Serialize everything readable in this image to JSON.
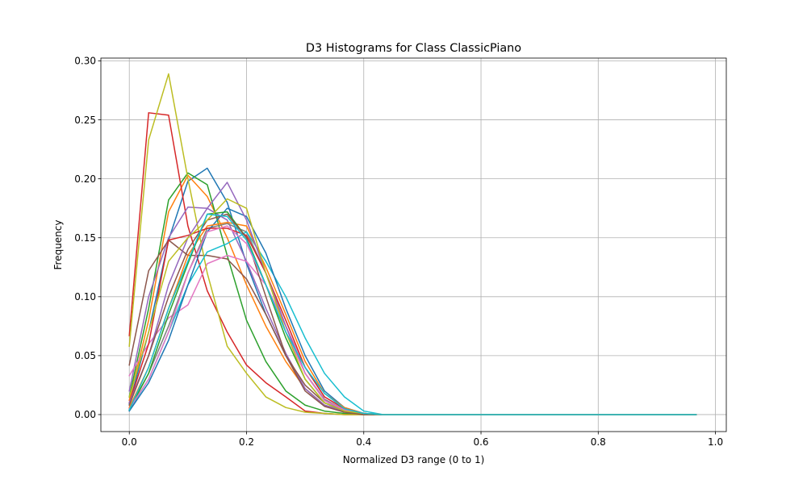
{
  "chart_data": {
    "type": "line",
    "title": "D3 Histograms for Class ClassicPiano",
    "xlabel": "Normalized D3 range (0 to 1)",
    "ylabel": "Frequency",
    "xlim": [
      -0.0485,
      1.0185
    ],
    "ylim": [
      -0.0144,
      0.3024
    ],
    "xticks": [
      0.0,
      0.2,
      0.4,
      0.6,
      0.8,
      1.0
    ],
    "xtick_labels": [
      "0.0",
      "0.2",
      "0.4",
      "0.6",
      "0.8",
      "1.0"
    ],
    "yticks": [
      0.0,
      0.05,
      0.1,
      0.15,
      0.2,
      0.25,
      0.3
    ],
    "ytick_labels": [
      "0.00",
      "0.05",
      "0.10",
      "0.15",
      "0.20",
      "0.25",
      "0.30"
    ],
    "grid": true,
    "legend": "none",
    "x": [
      0.0,
      0.033,
      0.067,
      0.1,
      0.133,
      0.167,
      0.2,
      0.233,
      0.267,
      0.3,
      0.333,
      0.367,
      0.4,
      0.433,
      0.467,
      0.5,
      0.533,
      0.567,
      0.6,
      0.633,
      0.667,
      0.7,
      0.733,
      0.767,
      0.8,
      0.833,
      0.867,
      0.9,
      0.933,
      0.967
    ],
    "series": [
      {
        "color": "#1f77b4",
        "values": [
          0.009,
          0.07,
          0.148,
          0.198,
          0.209,
          0.18,
          0.128,
          0.085,
          0.05,
          0.022,
          0.008,
          0.003,
          0.001,
          0,
          0,
          0,
          0,
          0,
          0,
          0,
          0,
          0,
          0,
          0,
          0,
          0,
          0,
          0,
          0,
          0
        ]
      },
      {
        "color": "#ff7f0e",
        "values": [
          0.012,
          0.08,
          0.172,
          0.203,
          0.185,
          0.15,
          0.11,
          0.075,
          0.045,
          0.022,
          0.008,
          0.003,
          0.001,
          0,
          0,
          0,
          0,
          0,
          0,
          0,
          0,
          0,
          0,
          0,
          0,
          0,
          0,
          0,
          0,
          0
        ]
      },
      {
        "color": "#2ca02c",
        "values": [
          0.015,
          0.09,
          0.182,
          0.205,
          0.195,
          0.135,
          0.08,
          0.045,
          0.02,
          0.008,
          0.003,
          0.001,
          0,
          0,
          0,
          0,
          0,
          0,
          0,
          0,
          0,
          0,
          0,
          0,
          0,
          0,
          0,
          0,
          0,
          0
        ]
      },
      {
        "color": "#d62728",
        "values": [
          0.067,
          0.256,
          0.254,
          0.16,
          0.105,
          0.07,
          0.042,
          0.027,
          0.015,
          0.003,
          0.001,
          0,
          0,
          0,
          0,
          0,
          0,
          0,
          0,
          0,
          0,
          0,
          0,
          0,
          0,
          0,
          0,
          0,
          0,
          0
        ]
      },
      {
        "color": "#9467bd",
        "values": [
          0.02,
          0.1,
          0.15,
          0.176,
          0.175,
          0.165,
          0.13,
          0.09,
          0.052,
          0.022,
          0.008,
          0.003,
          0.001,
          0,
          0,
          0,
          0,
          0,
          0,
          0,
          0,
          0,
          0,
          0,
          0,
          0,
          0,
          0,
          0,
          0
        ]
      },
      {
        "color": "#8c564b",
        "values": [
          0.042,
          0.122,
          0.148,
          0.135,
          0.135,
          0.132,
          0.115,
          0.085,
          0.05,
          0.025,
          0.01,
          0.003,
          0.001,
          0,
          0,
          0,
          0,
          0,
          0,
          0,
          0,
          0,
          0,
          0,
          0,
          0,
          0,
          0,
          0,
          0
        ]
      },
      {
        "color": "#e377c2",
        "values": [
          0.033,
          0.06,
          0.082,
          0.093,
          0.128,
          0.135,
          0.13,
          0.11,
          0.075,
          0.04,
          0.015,
          0.005,
          0.001,
          0,
          0,
          0,
          0,
          0,
          0,
          0,
          0,
          0,
          0,
          0,
          0,
          0,
          0,
          0,
          0,
          0
        ]
      },
      {
        "color": "#7f7f7f",
        "values": [
          0.005,
          0.035,
          0.075,
          0.12,
          0.158,
          0.162,
          0.155,
          0.12,
          0.075,
          0.035,
          0.013,
          0.004,
          0.001,
          0,
          0,
          0,
          0,
          0,
          0,
          0,
          0,
          0,
          0,
          0,
          0,
          0,
          0,
          0,
          0,
          0
        ]
      },
      {
        "color": "#bcbd22",
        "values": [
          0.058,
          0.233,
          0.289,
          0.2,
          0.12,
          0.058,
          0.035,
          0.015,
          0.006,
          0.002,
          0.001,
          0,
          0,
          0,
          0,
          0,
          0,
          0,
          0,
          0,
          0,
          0,
          0,
          0,
          0,
          0,
          0,
          0,
          0,
          0
        ]
      },
      {
        "color": "#17becf",
        "values": [
          0.004,
          0.03,
          0.07,
          0.11,
          0.138,
          0.145,
          0.155,
          0.13,
          0.1,
          0.065,
          0.035,
          0.015,
          0.003,
          0,
          0,
          0,
          0,
          0,
          0,
          0,
          0,
          0,
          0,
          0,
          0,
          0,
          0,
          0,
          0,
          0
        ]
      },
      {
        "color": "#1f77b4",
        "values": [
          0.003,
          0.027,
          0.063,
          0.11,
          0.155,
          0.175,
          0.168,
          0.137,
          0.09,
          0.05,
          0.02,
          0.006,
          0.001,
          0,
          0,
          0,
          0,
          0,
          0,
          0,
          0,
          0,
          0,
          0,
          0,
          0,
          0,
          0,
          0,
          0
        ]
      },
      {
        "color": "#ff7f0e",
        "values": [
          0.006,
          0.04,
          0.09,
          0.135,
          0.16,
          0.163,
          0.16,
          0.125,
          0.085,
          0.045,
          0.018,
          0.006,
          0.001,
          0,
          0,
          0,
          0,
          0,
          0,
          0,
          0,
          0,
          0,
          0,
          0,
          0,
          0,
          0,
          0,
          0
        ]
      },
      {
        "color": "#2ca02c",
        "values": [
          0.004,
          0.035,
          0.085,
          0.128,
          0.17,
          0.172,
          0.15,
          0.11,
          0.065,
          0.03,
          0.01,
          0.003,
          0.001,
          0,
          0,
          0,
          0,
          0,
          0,
          0,
          0,
          0,
          0,
          0,
          0,
          0,
          0,
          0,
          0,
          0
        ]
      },
      {
        "color": "#d62728",
        "values": [
          0.01,
          0.06,
          0.148,
          0.152,
          0.158,
          0.158,
          0.152,
          0.12,
          0.08,
          0.04,
          0.015,
          0.005,
          0.001,
          0,
          0,
          0,
          0,
          0,
          0,
          0,
          0,
          0,
          0,
          0,
          0,
          0,
          0,
          0,
          0,
          0
        ]
      },
      {
        "color": "#9467bd",
        "values": [
          0.01,
          0.05,
          0.11,
          0.15,
          0.175,
          0.197,
          0.165,
          0.12,
          0.075,
          0.035,
          0.012,
          0.003,
          0.001,
          0,
          0,
          0,
          0,
          0,
          0,
          0,
          0,
          0,
          0,
          0,
          0,
          0,
          0,
          0,
          0,
          0
        ]
      },
      {
        "color": "#8c564b",
        "values": [
          0.008,
          0.05,
          0.1,
          0.14,
          0.165,
          0.17,
          0.15,
          0.1,
          0.05,
          0.02,
          0.007,
          0.002,
          0,
          0,
          0,
          0,
          0,
          0,
          0,
          0,
          0,
          0,
          0,
          0,
          0,
          0,
          0,
          0,
          0,
          0
        ]
      },
      {
        "color": "#e377c2",
        "values": [
          0.005,
          0.03,
          0.07,
          0.12,
          0.155,
          0.16,
          0.145,
          0.11,
          0.07,
          0.035,
          0.012,
          0.004,
          0.001,
          0,
          0,
          0,
          0,
          0,
          0,
          0,
          0,
          0,
          0,
          0,
          0,
          0,
          0,
          0,
          0,
          0
        ]
      },
      {
        "color": "#bcbd22",
        "values": [
          0.015,
          0.07,
          0.13,
          0.15,
          0.165,
          0.183,
          0.175,
          0.12,
          0.07,
          0.03,
          0.01,
          0.003,
          0.001,
          0,
          0,
          0,
          0,
          0,
          0,
          0,
          0,
          0,
          0,
          0,
          0,
          0,
          0,
          0,
          0,
          0
        ]
      },
      {
        "color": "#17becf",
        "values": [
          0.004,
          0.04,
          0.09,
          0.13,
          0.17,
          0.168,
          0.148,
          0.11,
          0.07,
          0.04,
          0.018,
          0.005,
          0.001,
          0,
          0,
          0,
          0,
          0,
          0,
          0,
          0,
          0,
          0,
          0,
          0,
          0,
          0,
          0,
          0,
          0
        ]
      }
    ]
  }
}
